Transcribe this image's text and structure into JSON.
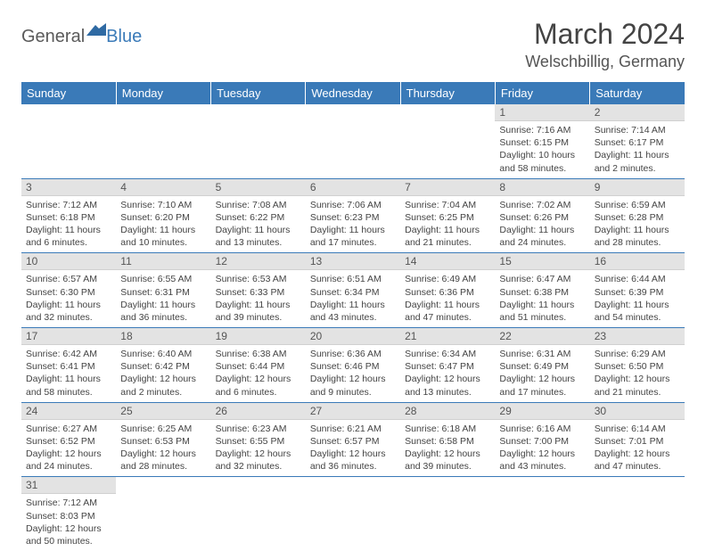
{
  "logo": {
    "part1": "General",
    "part2": "Blue"
  },
  "title": "March 2024",
  "location": "Welschbillig, Germany",
  "colors": {
    "header_bg": "#3a7ab8",
    "header_text": "#ffffff",
    "daynum_bg": "#e3e3e3",
    "body_text": "#444444",
    "row_divider": "#3a7ab8"
  },
  "weekdays": [
    "Sunday",
    "Monday",
    "Tuesday",
    "Wednesday",
    "Thursday",
    "Friday",
    "Saturday"
  ],
  "weeks": [
    [
      null,
      null,
      null,
      null,
      null,
      {
        "day": "1",
        "sunrise": "Sunrise: 7:16 AM",
        "sunset": "Sunset: 6:15 PM",
        "daylight": "Daylight: 10 hours and 58 minutes."
      },
      {
        "day": "2",
        "sunrise": "Sunrise: 7:14 AM",
        "sunset": "Sunset: 6:17 PM",
        "daylight": "Daylight: 11 hours and 2 minutes."
      }
    ],
    [
      {
        "day": "3",
        "sunrise": "Sunrise: 7:12 AM",
        "sunset": "Sunset: 6:18 PM",
        "daylight": "Daylight: 11 hours and 6 minutes."
      },
      {
        "day": "4",
        "sunrise": "Sunrise: 7:10 AM",
        "sunset": "Sunset: 6:20 PM",
        "daylight": "Daylight: 11 hours and 10 minutes."
      },
      {
        "day": "5",
        "sunrise": "Sunrise: 7:08 AM",
        "sunset": "Sunset: 6:22 PM",
        "daylight": "Daylight: 11 hours and 13 minutes."
      },
      {
        "day": "6",
        "sunrise": "Sunrise: 7:06 AM",
        "sunset": "Sunset: 6:23 PM",
        "daylight": "Daylight: 11 hours and 17 minutes."
      },
      {
        "day": "7",
        "sunrise": "Sunrise: 7:04 AM",
        "sunset": "Sunset: 6:25 PM",
        "daylight": "Daylight: 11 hours and 21 minutes."
      },
      {
        "day": "8",
        "sunrise": "Sunrise: 7:02 AM",
        "sunset": "Sunset: 6:26 PM",
        "daylight": "Daylight: 11 hours and 24 minutes."
      },
      {
        "day": "9",
        "sunrise": "Sunrise: 6:59 AM",
        "sunset": "Sunset: 6:28 PM",
        "daylight": "Daylight: 11 hours and 28 minutes."
      }
    ],
    [
      {
        "day": "10",
        "sunrise": "Sunrise: 6:57 AM",
        "sunset": "Sunset: 6:30 PM",
        "daylight": "Daylight: 11 hours and 32 minutes."
      },
      {
        "day": "11",
        "sunrise": "Sunrise: 6:55 AM",
        "sunset": "Sunset: 6:31 PM",
        "daylight": "Daylight: 11 hours and 36 minutes."
      },
      {
        "day": "12",
        "sunrise": "Sunrise: 6:53 AM",
        "sunset": "Sunset: 6:33 PM",
        "daylight": "Daylight: 11 hours and 39 minutes."
      },
      {
        "day": "13",
        "sunrise": "Sunrise: 6:51 AM",
        "sunset": "Sunset: 6:34 PM",
        "daylight": "Daylight: 11 hours and 43 minutes."
      },
      {
        "day": "14",
        "sunrise": "Sunrise: 6:49 AM",
        "sunset": "Sunset: 6:36 PM",
        "daylight": "Daylight: 11 hours and 47 minutes."
      },
      {
        "day": "15",
        "sunrise": "Sunrise: 6:47 AM",
        "sunset": "Sunset: 6:38 PM",
        "daylight": "Daylight: 11 hours and 51 minutes."
      },
      {
        "day": "16",
        "sunrise": "Sunrise: 6:44 AM",
        "sunset": "Sunset: 6:39 PM",
        "daylight": "Daylight: 11 hours and 54 minutes."
      }
    ],
    [
      {
        "day": "17",
        "sunrise": "Sunrise: 6:42 AM",
        "sunset": "Sunset: 6:41 PM",
        "daylight": "Daylight: 11 hours and 58 minutes."
      },
      {
        "day": "18",
        "sunrise": "Sunrise: 6:40 AM",
        "sunset": "Sunset: 6:42 PM",
        "daylight": "Daylight: 12 hours and 2 minutes."
      },
      {
        "day": "19",
        "sunrise": "Sunrise: 6:38 AM",
        "sunset": "Sunset: 6:44 PM",
        "daylight": "Daylight: 12 hours and 6 minutes."
      },
      {
        "day": "20",
        "sunrise": "Sunrise: 6:36 AM",
        "sunset": "Sunset: 6:46 PM",
        "daylight": "Daylight: 12 hours and 9 minutes."
      },
      {
        "day": "21",
        "sunrise": "Sunrise: 6:34 AM",
        "sunset": "Sunset: 6:47 PM",
        "daylight": "Daylight: 12 hours and 13 minutes."
      },
      {
        "day": "22",
        "sunrise": "Sunrise: 6:31 AM",
        "sunset": "Sunset: 6:49 PM",
        "daylight": "Daylight: 12 hours and 17 minutes."
      },
      {
        "day": "23",
        "sunrise": "Sunrise: 6:29 AM",
        "sunset": "Sunset: 6:50 PM",
        "daylight": "Daylight: 12 hours and 21 minutes."
      }
    ],
    [
      {
        "day": "24",
        "sunrise": "Sunrise: 6:27 AM",
        "sunset": "Sunset: 6:52 PM",
        "daylight": "Daylight: 12 hours and 24 minutes."
      },
      {
        "day": "25",
        "sunrise": "Sunrise: 6:25 AM",
        "sunset": "Sunset: 6:53 PM",
        "daylight": "Daylight: 12 hours and 28 minutes."
      },
      {
        "day": "26",
        "sunrise": "Sunrise: 6:23 AM",
        "sunset": "Sunset: 6:55 PM",
        "daylight": "Daylight: 12 hours and 32 minutes."
      },
      {
        "day": "27",
        "sunrise": "Sunrise: 6:21 AM",
        "sunset": "Sunset: 6:57 PM",
        "daylight": "Daylight: 12 hours and 36 minutes."
      },
      {
        "day": "28",
        "sunrise": "Sunrise: 6:18 AM",
        "sunset": "Sunset: 6:58 PM",
        "daylight": "Daylight: 12 hours and 39 minutes."
      },
      {
        "day": "29",
        "sunrise": "Sunrise: 6:16 AM",
        "sunset": "Sunset: 7:00 PM",
        "daylight": "Daylight: 12 hours and 43 minutes."
      },
      {
        "day": "30",
        "sunrise": "Sunrise: 6:14 AM",
        "sunset": "Sunset: 7:01 PM",
        "daylight": "Daylight: 12 hours and 47 minutes."
      }
    ],
    [
      {
        "day": "31",
        "sunrise": "Sunrise: 7:12 AM",
        "sunset": "Sunset: 8:03 PM",
        "daylight": "Daylight: 12 hours and 50 minutes."
      },
      null,
      null,
      null,
      null,
      null,
      null
    ]
  ]
}
